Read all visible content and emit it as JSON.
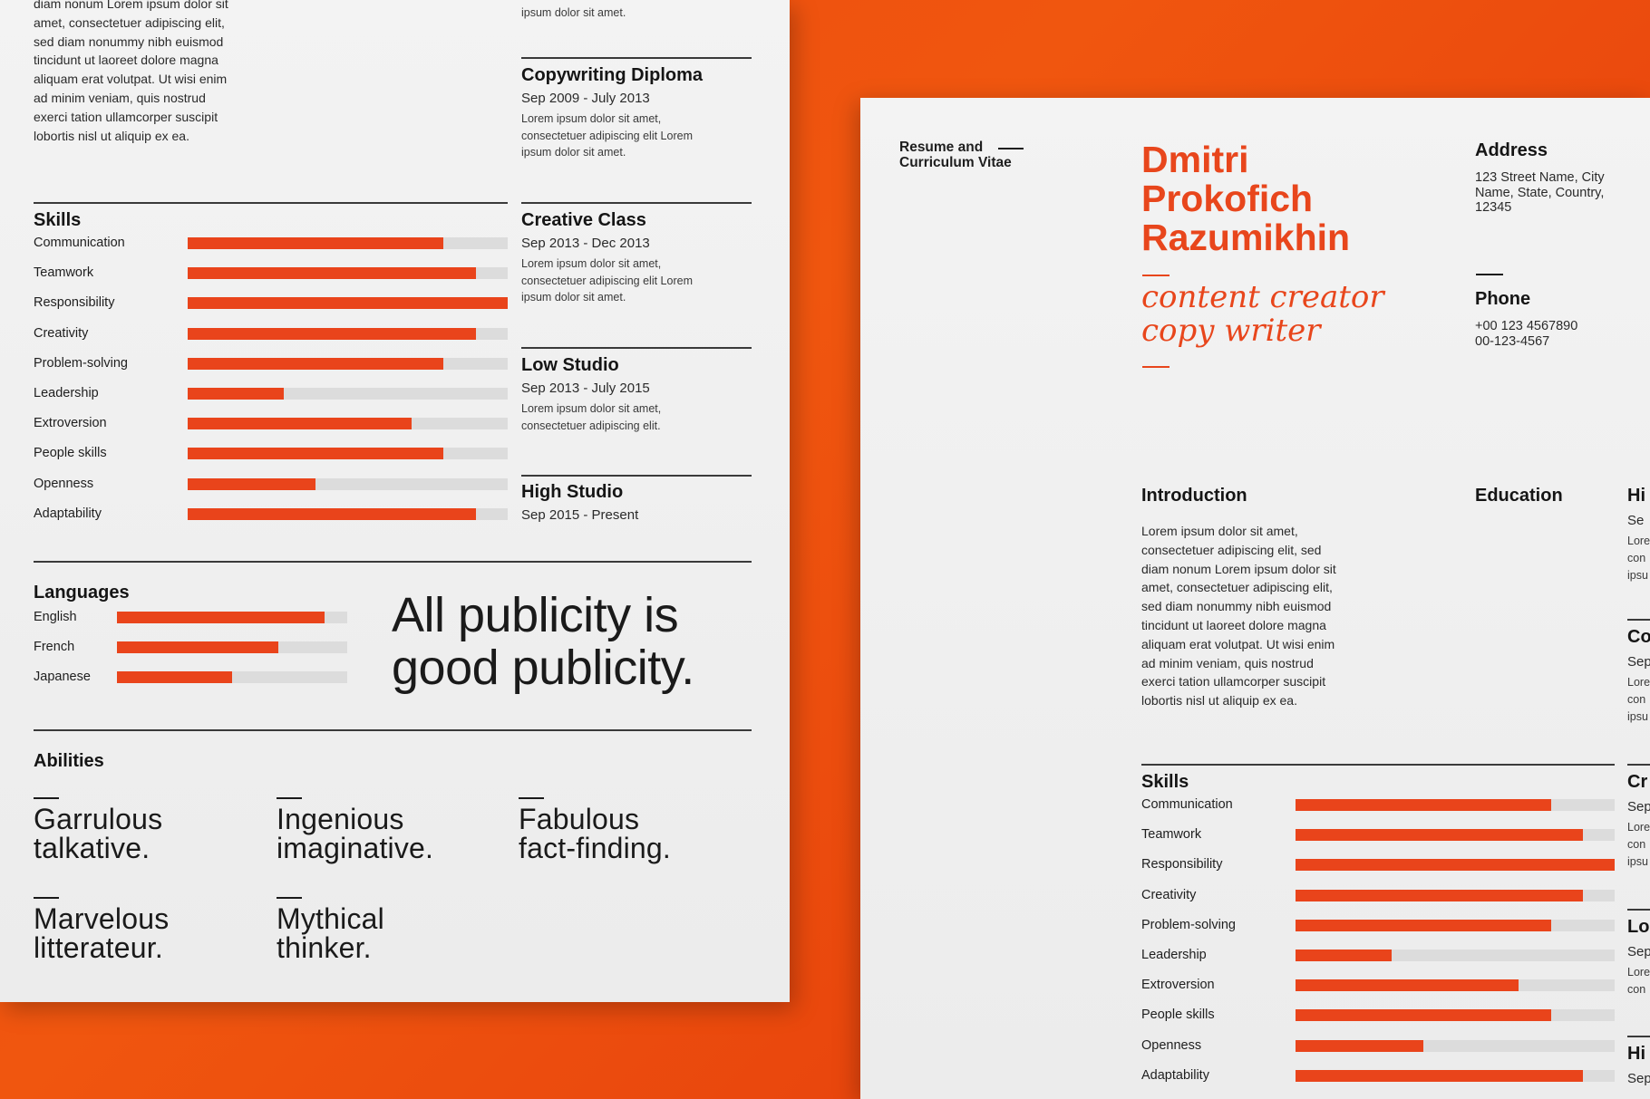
{
  "left": {
    "intro_lines": [
      "diam nonum Lorem ipsum dolor sit",
      "amet, consectetuer adipiscing elit,",
      "sed diam nonummy nibh euismod",
      "tincidunt ut laoreet dolore magna",
      "aliquam erat volutpat. Ut wisi enim",
      "ad minim veniam, quis nostrud",
      "exerci tation ullamcorper suscipit",
      "lobortis nisl ut aliquip ex ea."
    ],
    "top_clipped_text": "ipsum dolor sit amet.",
    "education": [
      {
        "title": "Copywriting Diploma",
        "date": "Sep 2009 - July 2013",
        "desc": [
          "Lorem ipsum dolor sit amet,",
          "consectetuer adipiscing elit Lorem",
          "ipsum dolor sit amet."
        ]
      },
      {
        "title": "Creative Class",
        "date": "Sep 2013 - Dec 2013",
        "desc": [
          "Lorem ipsum dolor sit amet,",
          "consectetuer adipiscing elit Lorem",
          "ipsum dolor sit amet."
        ]
      },
      {
        "title": "Low Studio",
        "date": "Sep 2013 - July 2015",
        "desc": [
          "Lorem ipsum dolor sit amet,",
          "consectetuer adipiscing elit."
        ]
      },
      {
        "title": "High Studio",
        "date": "Sep 2015 - Present",
        "desc": []
      }
    ],
    "skills_heading": "Skills",
    "skills": [
      {
        "label": "Communication",
        "level": 0.8
      },
      {
        "label": "Teamwork",
        "level": 0.9
      },
      {
        "label": "Responsibility",
        "level": 1.0
      },
      {
        "label": "Creativity",
        "level": 0.9
      },
      {
        "label": "Problem-solving",
        "level": 0.8
      },
      {
        "label": "Leadership",
        "level": 0.3
      },
      {
        "label": "Extroversion",
        "level": 0.7
      },
      {
        "label": "People skills",
        "level": 0.8
      },
      {
        "label": "Openness",
        "level": 0.4
      },
      {
        "label": "Adaptability",
        "level": 0.9
      }
    ],
    "languages_heading": "Languages",
    "languages": [
      {
        "label": "English",
        "level": 0.9
      },
      {
        "label": "French",
        "level": 0.7
      },
      {
        "label": "Japanese",
        "level": 0.5
      }
    ],
    "quote_lines": [
      "All publicity is",
      "good publicity."
    ],
    "abilities_heading": "Abilities",
    "abilities": [
      [
        "Garrulous",
        "talkative."
      ],
      [
        "Ingenious",
        "imaginative."
      ],
      [
        "Fabulous",
        "fact-finding."
      ],
      [
        "Marvelous",
        "litterateur."
      ],
      [
        "Mythical",
        "thinker."
      ]
    ]
  },
  "right": {
    "doc_label": [
      "Resume and",
      "Curriculum Vitae"
    ],
    "name_lines": [
      "Dmitri",
      "Prokofich",
      "Razumikhin"
    ],
    "role_lines": [
      "content creator",
      "copy writer"
    ],
    "address_heading": "Address",
    "address_lines": [
      "123 Street Name, City",
      "Name, State, Country,",
      "12345"
    ],
    "phone_heading": "Phone",
    "phone_lines": [
      "+00 123 4567890",
      "00-123-4567"
    ],
    "introduction_heading": "Introduction",
    "introduction_lines": [
      "Lorem ipsum dolor sit amet,",
      "consectetuer adipiscing elit, sed",
      "diam nonum Lorem ipsum dolor sit",
      "amet, consectetuer adipiscing elit,",
      "sed diam nonummy nibh euismod",
      "tincidunt ut laoreet dolore magna",
      "aliquam erat volutpat. Ut wisi enim",
      "ad minim veniam, quis nostrud",
      "exerci tation ullamcorper suscipit",
      "lobortis nisl ut aliquip ex ea."
    ],
    "education_heading": "Education",
    "skills_heading": "Skills",
    "skills": [
      {
        "label": "Communication",
        "level": 0.8
      },
      {
        "label": "Teamwork",
        "level": 0.9
      },
      {
        "label": "Responsibility",
        "level": 1.0
      },
      {
        "label": "Creativity",
        "level": 0.9
      },
      {
        "label": "Problem-solving",
        "level": 0.8
      },
      {
        "label": "Leadership",
        "level": 0.3
      },
      {
        "label": "Extroversion",
        "level": 0.7
      },
      {
        "label": "People skills",
        "level": 0.8
      },
      {
        "label": "Openness",
        "level": 0.4
      },
      {
        "label": "Adaptability",
        "level": 0.9
      }
    ],
    "clipped_edge_text": [
      "Hi",
      "Se",
      "Lore",
      "con",
      "ipsu",
      "Co",
      "Sep",
      "Lore",
      "con",
      "ipsu",
      "Cr",
      "Sep",
      "Lore",
      "con",
      "ipsu",
      "Lo",
      "Sep",
      "Lore",
      "con",
      "Hi",
      "Sep"
    ]
  },
  "colors": {
    "accent": "#e9441b",
    "background": "#ee4c10",
    "paper": "#efefef",
    "track": "#dcdcdc"
  }
}
